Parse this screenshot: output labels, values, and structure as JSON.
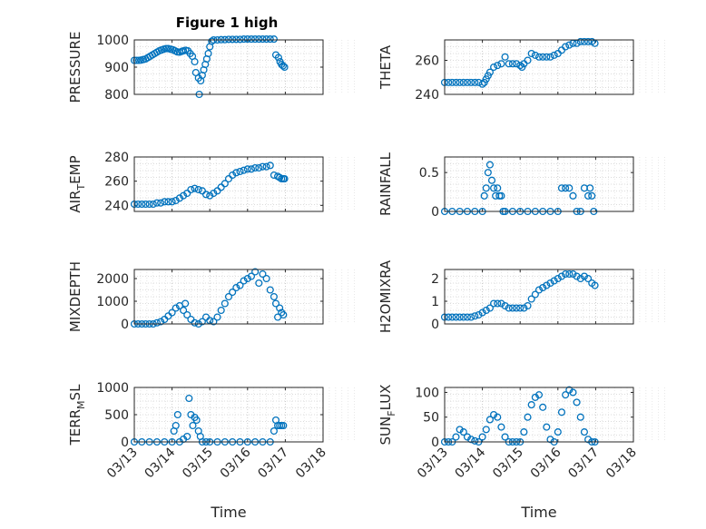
{
  "figure_title": "Figure 1 high",
  "marker_color": "#0072BD",
  "x_tick_labels": [
    "03/13",
    "03/14",
    "03/15",
    "03/16",
    "03/17",
    "03/18"
  ],
  "chart_data": [
    {
      "type": "scatter",
      "name": "pressure",
      "ylabel": "PRESSURE",
      "xlabel": "",
      "ylim": [
        800,
        1000
      ],
      "yticks": [
        800,
        900,
        1000
      ],
      "xlim": [
        "03/13",
        "03/18"
      ],
      "grid": true,
      "x": [
        0,
        0.06,
        0.12,
        0.18,
        0.24,
        0.3,
        0.36,
        0.42,
        0.48,
        0.54,
        0.6,
        0.66,
        0.72,
        0.78,
        0.84,
        0.9,
        0.96,
        1.02,
        1.08,
        1.14,
        1.2,
        1.26,
        1.3,
        1.36,
        1.42,
        1.48,
        1.54,
        1.6,
        1.63,
        1.7,
        1.72,
        1.76,
        1.8,
        1.84,
        1.88,
        1.92,
        1.96,
        2.0,
        2.05,
        2.1,
        2.2,
        2.3,
        2.4,
        2.5,
        2.6,
        2.7,
        2.8,
        2.9,
        3.0,
        3.1,
        3.2,
        3.3,
        3.4,
        3.5,
        3.6,
        3.7,
        3.75,
        3.82,
        3.86,
        3.9,
        3.94,
        3.98
      ],
      "y": [
        925,
        925,
        925,
        926,
        928,
        930,
        935,
        940,
        945,
        950,
        955,
        960,
        963,
        966,
        968,
        968,
        966,
        964,
        960,
        956,
        955,
        958,
        960,
        962,
        960,
        950,
        940,
        920,
        880,
        860,
        800,
        850,
        870,
        890,
        910,
        930,
        950,
        975,
        995,
        1000,
        1000,
        1001,
        1001,
        1002,
        1002,
        1002,
        1002,
        1003,
        1003,
        1003,
        1003,
        1003,
        1003,
        1003,
        1003,
        1003,
        945,
        935,
        920,
        910,
        905,
        900
      ]
    },
    {
      "type": "scatter",
      "name": "theta",
      "ylabel": "THETA",
      "xlabel": "",
      "ylim": [
        240,
        272
      ],
      "yticks": [
        240,
        260
      ],
      "xlim": [
        "03/13",
        "03/18"
      ],
      "grid": true,
      "x": [
        0,
        0.1,
        0.2,
        0.3,
        0.4,
        0.5,
        0.6,
        0.7,
        0.8,
        0.9,
        1.0,
        1.05,
        1.1,
        1.15,
        1.2,
        1.3,
        1.4,
        1.5,
        1.6,
        1.7,
        1.8,
        1.9,
        2.0,
        2.05,
        2.1,
        2.2,
        2.3,
        2.4,
        2.5,
        2.6,
        2.7,
        2.8,
        2.9,
        3.0,
        3.1,
        3.2,
        3.3,
        3.4,
        3.5,
        3.6,
        3.7,
        3.8,
        3.9,
        3.98
      ],
      "y": [
        247,
        247,
        247,
        247,
        247,
        247,
        247,
        247,
        247,
        247,
        246,
        247,
        249,
        251,
        253,
        256,
        257,
        258,
        262,
        258,
        258,
        258,
        257,
        256,
        258,
        260,
        264,
        263,
        262,
        262,
        262,
        262,
        263,
        264,
        266,
        268,
        269,
        270,
        270,
        271,
        271,
        271,
        271,
        270
      ]
    },
    {
      "type": "scatter",
      "name": "air_temp",
      "ylabel": "AIR_TEMP",
      "xlabel": "",
      "ylim": [
        235,
        280
      ],
      "yticks": [
        240,
        260,
        280
      ],
      "xlim": [
        "03/13",
        "03/18"
      ],
      "grid": true,
      "x": [
        0,
        0.1,
        0.2,
        0.3,
        0.4,
        0.5,
        0.6,
        0.7,
        0.8,
        0.9,
        1.0,
        1.1,
        1.2,
        1.3,
        1.4,
        1.5,
        1.6,
        1.7,
        1.8,
        1.9,
        2.0,
        2.1,
        2.2,
        2.3,
        2.4,
        2.5,
        2.6,
        2.7,
        2.8,
        2.9,
        3.0,
        3.1,
        3.2,
        3.3,
        3.4,
        3.5,
        3.6,
        3.7,
        3.8,
        3.85,
        3.9,
        3.95,
        3.98
      ],
      "y": [
        241,
        241,
        241,
        241,
        241,
        241,
        242,
        242,
        243,
        243,
        243,
        244,
        246,
        248,
        250,
        253,
        254,
        253,
        252,
        249,
        248,
        250,
        252,
        255,
        258,
        262,
        265,
        267,
        268,
        269,
        270,
        270,
        271,
        271,
        272,
        272,
        273,
        265,
        264,
        263,
        262,
        262,
        262
      ]
    },
    {
      "type": "scatter",
      "name": "rainfall",
      "ylabel": "RAINFALL",
      "xlabel": "",
      "ylim": [
        0,
        0.7
      ],
      "yticks": [
        0,
        0.5
      ],
      "xlim": [
        "03/13",
        "03/18"
      ],
      "grid": true,
      "x": [
        0,
        0.2,
        0.4,
        0.6,
        0.8,
        1.0,
        1.05,
        1.1,
        1.15,
        1.2,
        1.25,
        1.3,
        1.35,
        1.4,
        1.45,
        1.5,
        1.55,
        1.6,
        1.8,
        2.0,
        2.2,
        2.4,
        2.6,
        2.8,
        3.0,
        3.1,
        3.2,
        3.3,
        3.4,
        3.5,
        3.6,
        3.7,
        3.8,
        3.85,
        3.9,
        3.95
      ],
      "y": [
        0,
        0,
        0,
        0,
        0,
        0,
        0.2,
        0.3,
        0.5,
        0.6,
        0.4,
        0.3,
        0.2,
        0.3,
        0.2,
        0.2,
        0,
        0,
        0,
        0,
        0,
        0,
        0,
        0,
        0,
        0.3,
        0.3,
        0.3,
        0.2,
        0,
        0,
        0.3,
        0.2,
        0.3,
        0.2,
        0
      ]
    },
    {
      "type": "scatter",
      "name": "mixdepth",
      "ylabel": "MIXDEPTH",
      "xlabel": "",
      "ylim": [
        0,
        2400
      ],
      "yticks": [
        0,
        1000,
        2000
      ],
      "xlim": [
        "03/13",
        "03/18"
      ],
      "grid": true,
      "x": [
        0,
        0.1,
        0.2,
        0.3,
        0.4,
        0.5,
        0.6,
        0.7,
        0.8,
        0.9,
        1.0,
        1.1,
        1.2,
        1.3,
        1.35,
        1.4,
        1.5,
        1.6,
        1.7,
        1.8,
        1.9,
        2.0,
        2.1,
        2.2,
        2.3,
        2.4,
        2.5,
        2.6,
        2.7,
        2.8,
        2.9,
        3.0,
        3.1,
        3.2,
        3.3,
        3.4,
        3.5,
        3.6,
        3.7,
        3.75,
        3.8,
        3.85,
        3.9,
        3.95
      ],
      "y": [
        0,
        0,
        0,
        0,
        0,
        0,
        50,
        100,
        200,
        350,
        500,
        700,
        800,
        600,
        900,
        400,
        200,
        50,
        0,
        100,
        300,
        150,
        100,
        300,
        600,
        900,
        1200,
        1400,
        1600,
        1700,
        1900,
        2000,
        2100,
        2300,
        1800,
        2200,
        2000,
        1500,
        1200,
        900,
        300,
        700,
        500,
        400
      ]
    },
    {
      "type": "scatter",
      "name": "h2omixra",
      "ylabel": "H2OMIXRA",
      "xlabel": "",
      "ylim": [
        0,
        2.4
      ],
      "yticks": [
        0,
        1,
        2
      ],
      "xlim": [
        "03/13",
        "03/18"
      ],
      "grid": true,
      "x": [
        0,
        0.1,
        0.2,
        0.3,
        0.4,
        0.5,
        0.6,
        0.7,
        0.8,
        0.9,
        1.0,
        1.1,
        1.2,
        1.3,
        1.4,
        1.5,
        1.6,
        1.7,
        1.8,
        1.9,
        2.0,
        2.1,
        2.2,
        2.3,
        2.4,
        2.5,
        2.6,
        2.7,
        2.8,
        2.9,
        3.0,
        3.1,
        3.2,
        3.3,
        3.4,
        3.5,
        3.6,
        3.7,
        3.8,
        3.9,
        3.98
      ],
      "y": [
        0.3,
        0.3,
        0.3,
        0.3,
        0.3,
        0.3,
        0.3,
        0.3,
        0.35,
        0.4,
        0.5,
        0.6,
        0.7,
        0.9,
        0.9,
        0.9,
        0.8,
        0.7,
        0.7,
        0.7,
        0.7,
        0.7,
        0.8,
        1.1,
        1.3,
        1.5,
        1.6,
        1.7,
        1.8,
        1.9,
        2.0,
        2.1,
        2.2,
        2.2,
        2.2,
        2.1,
        2.0,
        2.1,
        2.0,
        1.8,
        1.7
      ]
    },
    {
      "type": "scatter",
      "name": "terr_msl",
      "ylabel": "TERR_MSL",
      "xlabel": "Time",
      "ylim": [
        0,
        1000
      ],
      "yticks": [
        0,
        500,
        1000
      ],
      "xlim": [
        "03/13",
        "03/18"
      ],
      "grid": true,
      "x": [
        0,
        0.2,
        0.4,
        0.6,
        0.8,
        1.0,
        1.05,
        1.1,
        1.15,
        1.2,
        1.3,
        1.4,
        1.45,
        1.5,
        1.55,
        1.6,
        1.65,
        1.7,
        1.75,
        1.8,
        1.9,
        2.0,
        2.2,
        2.4,
        2.6,
        2.8,
        3.0,
        3.2,
        3.4,
        3.6,
        3.7,
        3.75,
        3.8,
        3.85,
        3.9,
        3.95
      ],
      "y": [
        0,
        0,
        0,
        0,
        0,
        0,
        200,
        300,
        500,
        0,
        50,
        100,
        800,
        500,
        300,
        450,
        400,
        200,
        100,
        0,
        0,
        0,
        0,
        0,
        0,
        0,
        0,
        0,
        0,
        0,
        200,
        400,
        300,
        300,
        300,
        300
      ]
    },
    {
      "type": "scatter",
      "name": "sun_flux",
      "ylabel": "SUN_FLUX",
      "xlabel": "Time",
      "ylim": [
        0,
        110
      ],
      "yticks": [
        0,
        50,
        100
      ],
      "xlim": [
        "03/13",
        "03/18"
      ],
      "grid": true,
      "x": [
        0,
        0.1,
        0.2,
        0.3,
        0.4,
        0.5,
        0.6,
        0.7,
        0.8,
        0.9,
        1.0,
        1.1,
        1.2,
        1.3,
        1.4,
        1.5,
        1.6,
        1.7,
        1.8,
        1.9,
        2.0,
        2.1,
        2.2,
        2.3,
        2.4,
        2.5,
        2.6,
        2.7,
        2.8,
        2.9,
        3.0,
        3.1,
        3.2,
        3.3,
        3.4,
        3.5,
        3.6,
        3.7,
        3.8,
        3.9,
        3.98
      ],
      "y": [
        0,
        0,
        0,
        10,
        25,
        20,
        10,
        5,
        2,
        0,
        10,
        25,
        45,
        55,
        50,
        30,
        10,
        0,
        0,
        0,
        0,
        20,
        50,
        75,
        90,
        95,
        70,
        30,
        5,
        0,
        20,
        60,
        95,
        105,
        100,
        80,
        50,
        20,
        5,
        0,
        0
      ]
    }
  ]
}
